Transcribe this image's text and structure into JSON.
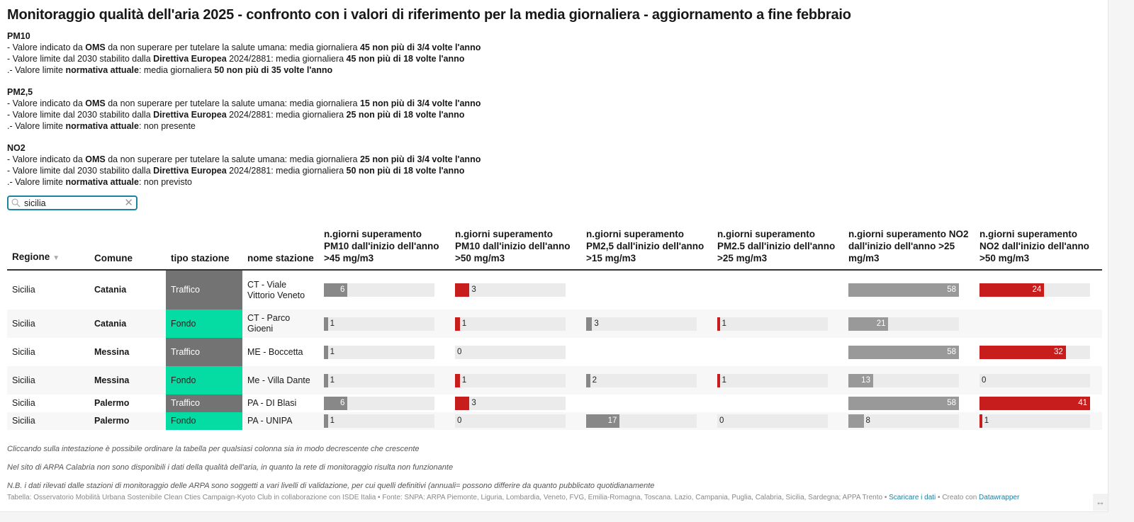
{
  "title": "Monitoraggio qualità dell'aria 2025 - confronto con i valori di riferimento per la media giornaliera - aggiornamento a fine febbraio",
  "intro": [
    {
      "heading": "PM10",
      "lines": [
        {
          "a": "- Valore indicato da ",
          "b": "OMS",
          "c": " da non superare per tutelare la salute umana: media giornaliera ",
          "d": "45 non più di 3/4 volte l'anno"
        },
        {
          "a": "- Valore limite dal 2030 stabilito dalla ",
          "b": "Direttiva Europea",
          "c": " 2024/2881: media giornaliera ",
          "d": "45 non più di 18 volte l'anno"
        },
        {
          "a": ".- Valore limite ",
          "b": "normativa attuale",
          "c": ": media giornaliera ",
          "d": "50 non più di 35 volte l'anno"
        }
      ]
    },
    {
      "heading": "PM2,5",
      "lines": [
        {
          "a": "- Valore indicato da ",
          "b": "OMS",
          "c": " da non superare per tutelare la salute umana: media giornaliera ",
          "d": "15 non più di 3/4 volte l'anno"
        },
        {
          "a": "- Valore limite dal 2030 stabilito dalla ",
          "b": "Direttiva Europea",
          "c": " 2024/2881: media giornaliera ",
          "d": "25 non più di 18 volte l'anno"
        },
        {
          "a": ".- Valore limite ",
          "b": "normativa attuale",
          "c": ": non presente",
          "d": ""
        }
      ]
    },
    {
      "heading": "NO2",
      "lines": [
        {
          "a": "- Valore indicato da ",
          "b": "OMS",
          "c": " da non superare per tutelare la salute umana: media giornaliera ",
          "d": "25 non più di 3/4 volte l'anno"
        },
        {
          "a": "- Valore limite dal 2030 stabilito dalla ",
          "b": "Direttiva Europea",
          "c": " 2024/2881: media giornaliera ",
          "d": "50 non più di 18 volte l'anno"
        },
        {
          "a": ".- Valore limite ",
          "b": "normativa attuale",
          "c": ": non previsto",
          "d": ""
        }
      ]
    }
  ],
  "search": {
    "value": "sicilia",
    "icon": "search-icon",
    "clear_icon": "close-icon"
  },
  "table": {
    "headers": [
      "Regione",
      "Comune",
      "tipo stazione",
      "nome stazione",
      "n.giorni superamento PM10 dall'inizio dell'anno >45 mg/m3",
      "n.giorni superamento PM10 dall'inizio dell'anno >50 mg/m3",
      "n.giorni superamento PM2,5 dall'inizio dell'anno >15 mg/m3",
      "n.giorni superamento PM2.5 dall'inizio dell'anno >25 mg/m3",
      "n.giorni superamento NO2 dall'inizio dell'anno >25 mg/m3",
      "n.giorni superamento NO2 dall'inizio dell'anno >50 mg/m3"
    ],
    "sorted_column": "Regione",
    "bar_columns": [
      {
        "color": "#888888",
        "scale_max": 28
      },
      {
        "color": "#c71e1d",
        "scale_max": 23
      },
      {
        "color": "#888888",
        "scale_max": 56
      },
      {
        "color": "#c71e1d",
        "scale_max": 50
      },
      {
        "color": "#999999",
        "scale_max": 58
      },
      {
        "color": "#c71e1d",
        "scale_max": 41
      }
    ],
    "tipo_colors": {
      "Traffico": "#737373",
      "Fondo": "#05dca4"
    },
    "rows": [
      {
        "regione": "Sicilia",
        "comune": "Catania",
        "tipo": "Traffico",
        "nome": "CT - Viale Vittorio Veneto",
        "values": [
          6,
          3,
          null,
          null,
          58,
          24
        ]
      },
      {
        "regione": "Sicilia",
        "comune": "Catania",
        "tipo": "Fondo",
        "nome": "CT - Parco Gioeni",
        "values": [
          1,
          1,
          3,
          1,
          21,
          null
        ]
      },
      {
        "regione": "Sicilia",
        "comune": "Messina",
        "tipo": "Traffico",
        "nome": "ME - Boccetta",
        "values": [
          1,
          0,
          null,
          null,
          58,
          32
        ]
      },
      {
        "regione": "Sicilia",
        "comune": "Messina",
        "tipo": "Fondo",
        "nome": "Me - Villa Dante",
        "values": [
          1,
          1,
          2,
          1,
          13,
          0
        ]
      },
      {
        "regione": "Sicilia",
        "comune": "Palermo",
        "tipo": "Traffico",
        "nome": "PA - DI Blasi",
        "values": [
          6,
          3,
          null,
          null,
          58,
          41
        ]
      },
      {
        "regione": "Sicilia",
        "comune": "Palermo",
        "tipo": "Fondo",
        "nome": "PA - UNIPA",
        "values": [
          1,
          0,
          17,
          0,
          8,
          1
        ]
      }
    ]
  },
  "notes": [
    "Cliccando sulla intestazione è possibile ordinare la tabella per qualsiasi colonna sia in modo decrescente che crescente",
    "Nel sito di ARPA Calabria non sono disponibili i dati della qualità dell'aria, in quanto la rete di monitoraggio risulta non funzionante",
    "N.B. i dati rilevati dalle stazioni di monitoraggio delle ARPA sono soggetti a vari livelli di validazione, per cui quelli definitivi (annuali= possono differire da quanto pubblicato quotidianamente"
  ],
  "footer": {
    "text": "Tabella: Osservatorio Mobilità Urbana Sostenibile Clean Cties Campaign-Kyoto Club in collaborazione con ISDE Italia • Fonte: SNPA: ARPA Piemonte, Liguria, Lombardia, Veneto, FVG, Emilia-Romagna, Toscana. Lazio, Campania, Puglia, Calabria, Sicilia, Sardegna; APPA Trento • ",
    "download": "Scaricare i dati",
    "sep": " • Creato con ",
    "tool": "Datawrapper"
  },
  "resize_icon": "↔"
}
